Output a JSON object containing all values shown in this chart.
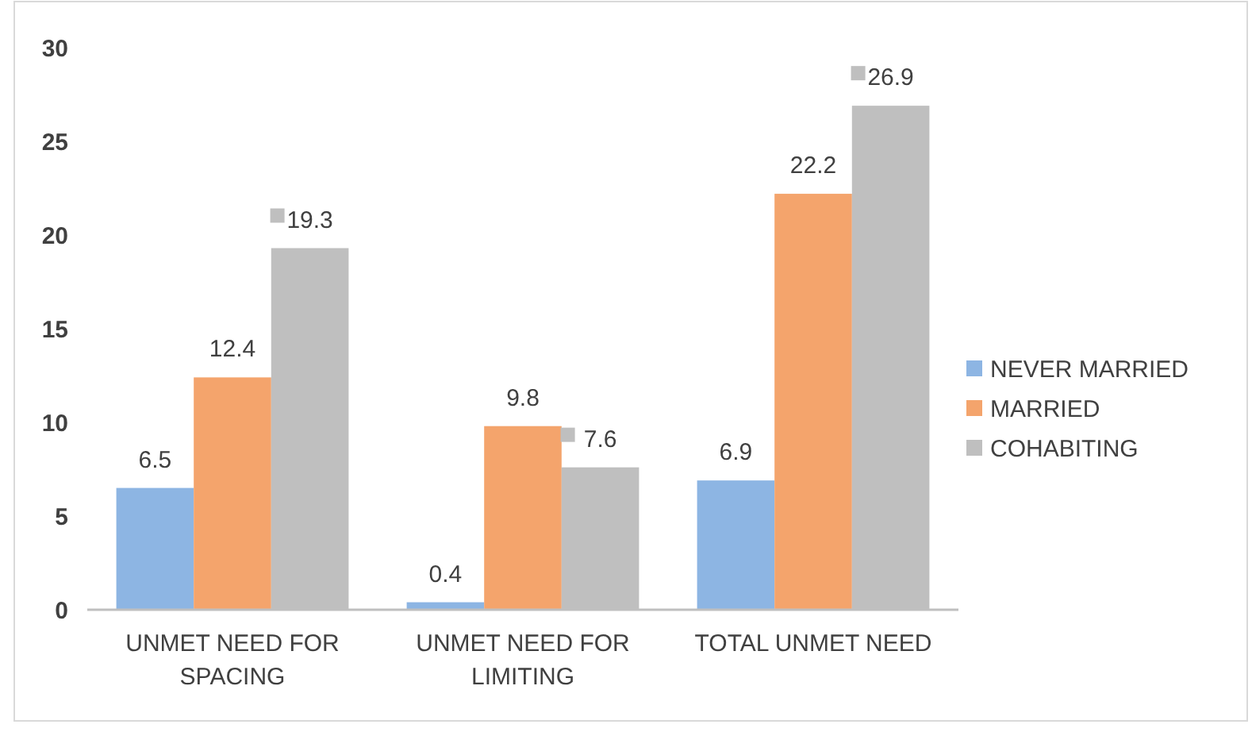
{
  "chart_data": {
    "type": "bar",
    "categories": [
      "UNMET NEED FOR SPACING",
      "UNMET NEED FOR LIMITING",
      "TOTAL UNMET NEED"
    ],
    "series": [
      {
        "name": "NEVER MARRIED",
        "color": "#8db5e3",
        "values": [
          6.5,
          0.4,
          6.9
        ]
      },
      {
        "name": "MARRIED",
        "color": "#f4a46c",
        "values": [
          12.4,
          9.8,
          22.2
        ]
      },
      {
        "name": "COHABITING",
        "color": "#bfbfbf",
        "values": [
          19.3,
          7.6,
          26.9
        ]
      }
    ],
    "ylim": [
      0,
      30
    ],
    "yticks": [
      0,
      5,
      10,
      15,
      20,
      25,
      30
    ],
    "grid": false,
    "legend": "right",
    "data_labels": true
  }
}
